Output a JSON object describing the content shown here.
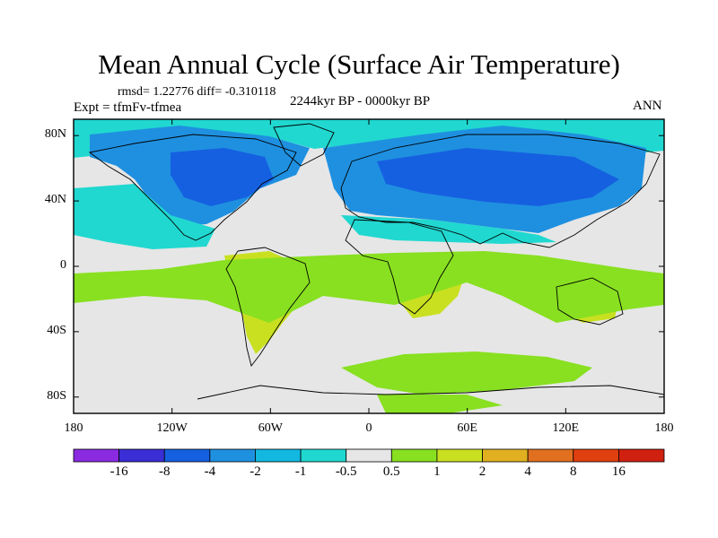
{
  "chart_data": {
    "type": "heatmap",
    "title": "Mean Annual Cycle (Surface Air Temperature)",
    "stats_text": "rmsd= 1.22776 diff= -0.310118",
    "experiment_text": "Expt = tfmFv-tfmea",
    "period_text": "2244kyr BP - 0000kyr BP",
    "season": "ANN",
    "xlim": [
      -180,
      180
    ],
    "ylim": [
      -90,
      90
    ],
    "x_ticks": [
      {
        "value": -180,
        "label": "180"
      },
      {
        "value": -120,
        "label": "120W"
      },
      {
        "value": -60,
        "label": "60W"
      },
      {
        "value": 0,
        "label": "0"
      },
      {
        "value": 60,
        "label": "60E"
      },
      {
        "value": 120,
        "label": "120E"
      },
      {
        "value": 180,
        "label": "180"
      }
    ],
    "y_ticks": [
      {
        "value": 80,
        "label": "80N"
      },
      {
        "value": 40,
        "label": "40N"
      },
      {
        "value": 0,
        "label": "0"
      },
      {
        "value": -40,
        "label": "40S"
      },
      {
        "value": -80,
        "label": "80S"
      }
    ],
    "colorbar": {
      "levels": [
        "-16",
        "-8",
        "-4",
        "-2",
        "-1",
        "-0.5",
        "0.5",
        "1",
        "2",
        "4",
        "8",
        "16"
      ],
      "colors": [
        "#8a2be2",
        "#3a2ed6",
        "#1560e0",
        "#1f90e0",
        "#12b8e0",
        "#20d8d0",
        "#e6e6e6",
        "#88e020",
        "#c8e020",
        "#e0b020",
        "#e07020",
        "#e04010",
        "#d02010"
      ]
    },
    "regions": [
      {
        "name": "arctic-band",
        "level": "-1 to -0.5",
        "lon": [
          -175,
          175
        ],
        "lat": [
          72,
          88
        ]
      },
      {
        "name": "north-america",
        "level": "-4 to -2",
        "lon": [
          -165,
          -55
        ],
        "lat": [
          28,
          72
        ]
      },
      {
        "name": "eurasia",
        "level": "-4 to -2",
        "lon": [
          -10,
          175
        ],
        "lat": [
          22,
          75
        ]
      },
      {
        "name": "south-america",
        "level": "1 to 2",
        "lon": [
          -82,
          -35
        ],
        "lat": [
          -55,
          12
        ]
      },
      {
        "name": "africa",
        "level": "1 to 2",
        "lon": [
          -18,
          52
        ],
        "lat": [
          -35,
          20
        ]
      },
      {
        "name": "australia",
        "level": "1 to 2",
        "lon": [
          112,
          155
        ],
        "lat": [
          -40,
          -10
        ]
      },
      {
        "name": "southern-ocean",
        "level": "0.5 to 1",
        "lon": [
          -30,
          120
        ],
        "lat": [
          -70,
          -50
        ]
      }
    ]
  }
}
